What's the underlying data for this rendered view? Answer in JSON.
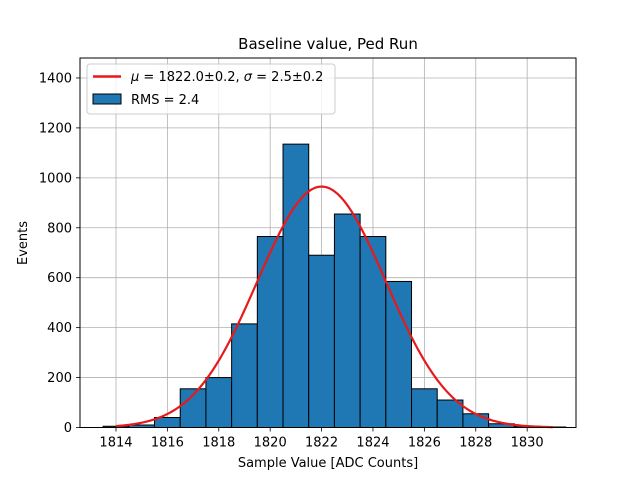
{
  "chart_data": {
    "type": "bar",
    "title": "Baseline value, Ped Run",
    "xlabel": "Sample Value [ADC Counts]",
    "ylabel": "Events",
    "xlim": [
      1812.6,
      1831.9
    ],
    "ylim": [
      0,
      1480
    ],
    "grid": true,
    "legend_position": "top-left",
    "x_ticks": [
      1814,
      1816,
      1818,
      1820,
      1822,
      1824,
      1826,
      1828,
      1830
    ],
    "y_ticks": [
      0,
      200,
      400,
      600,
      800,
      1000,
      1200,
      1400
    ],
    "histogram": {
      "name": "RMS = 2.4",
      "bin_width": 1,
      "bin_edges_start": 1813.5,
      "values": [
        5,
        10,
        40,
        155,
        200,
        415,
        765,
        1135,
        690,
        855,
        765,
        585,
        155,
        110,
        55,
        15,
        5,
        2
      ],
      "color": "#1f77b4",
      "edgecolor": "#000000"
    },
    "fit": {
      "name": "$\\mu = 1822.0\\pm0.2$, $\\sigma = 2.5\\pm0.2$",
      "legend_parts": [
        "μ",
        " = 1822.0±0.2, ",
        "σ",
        " = 2.5±0.2"
      ],
      "mu": 1822.0,
      "sigma": 2.5,
      "amplitude": 965,
      "x_range": [
        1814,
        1831
      ],
      "color": "#e8191b"
    }
  }
}
